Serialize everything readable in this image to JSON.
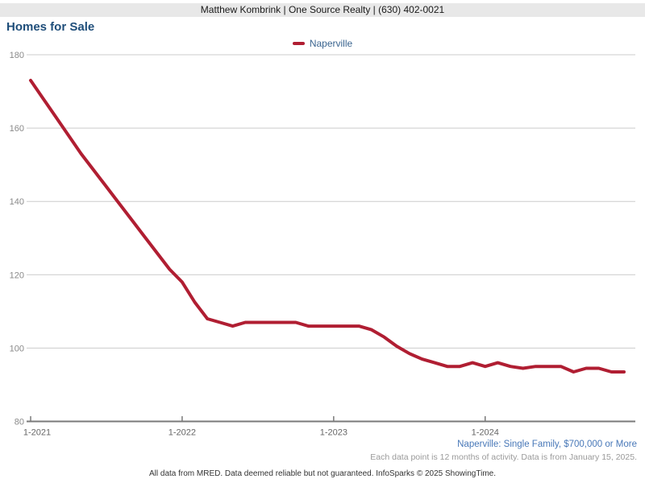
{
  "header": {
    "text": "Matthew Kombrink | One Source Realty | (630) 402-0021"
  },
  "title": "Homes for Sale",
  "legend": {
    "label": "Naperville",
    "color": "#b01e32"
  },
  "chart_data": {
    "type": "line",
    "title": "Homes for Sale",
    "legend_position": "top-center",
    "grid": "horizontal",
    "ylim": [
      80,
      180
    ],
    "yticks": [
      80,
      100,
      120,
      140,
      160,
      180
    ],
    "xticks": [
      {
        "label": "1-2021",
        "month": 0
      },
      {
        "label": "1-2022",
        "month": 12
      },
      {
        "label": "1-2023",
        "month": 24
      },
      {
        "label": "1-2024",
        "month": 36
      }
    ],
    "categories": [
      "1-2021",
      "2-2021",
      "3-2021",
      "4-2021",
      "5-2021",
      "6-2021",
      "7-2021",
      "8-2021",
      "9-2021",
      "10-2021",
      "11-2021",
      "12-2021",
      "1-2022",
      "2-2022",
      "3-2022",
      "4-2022",
      "5-2022",
      "6-2022",
      "7-2022",
      "8-2022",
      "9-2022",
      "10-2022",
      "11-2022",
      "12-2022",
      "1-2023",
      "2-2023",
      "3-2023",
      "4-2023",
      "5-2023",
      "6-2023",
      "7-2023",
      "8-2023",
      "9-2023",
      "10-2023",
      "11-2023",
      "12-2023",
      "1-2024",
      "2-2024",
      "3-2024",
      "4-2024",
      "5-2024",
      "6-2024",
      "7-2024",
      "8-2024",
      "9-2024",
      "10-2024",
      "11-2024",
      "12-2024"
    ],
    "series": [
      {
        "name": "Naperville",
        "color": "#b01e32",
        "values": [
          173,
          168,
          163,
          158,
          153,
          148.5,
          144,
          139.5,
          135,
          130.5,
          126,
          121.5,
          118,
          112.5,
          108,
          107,
          106,
          107,
          107,
          107,
          107,
          107,
          106,
          106,
          106,
          106,
          106,
          105,
          103,
          100.5,
          98.5,
          97,
          96,
          95,
          95,
          96,
          95,
          96,
          95,
          94.5,
          95,
          95,
          95,
          93.5,
          94.5,
          94.5,
          93.5,
          93.5
        ]
      }
    ]
  },
  "footer": {
    "segment": "Naperville: Single Family, $700,000 or More",
    "note": "Each data point is 12 months of activity. Data is from January 15, 2025.",
    "disclaimer": "All data from MRED. Data deemed reliable but not guaranteed. InfoSparks © 2025 ShowingTime."
  }
}
